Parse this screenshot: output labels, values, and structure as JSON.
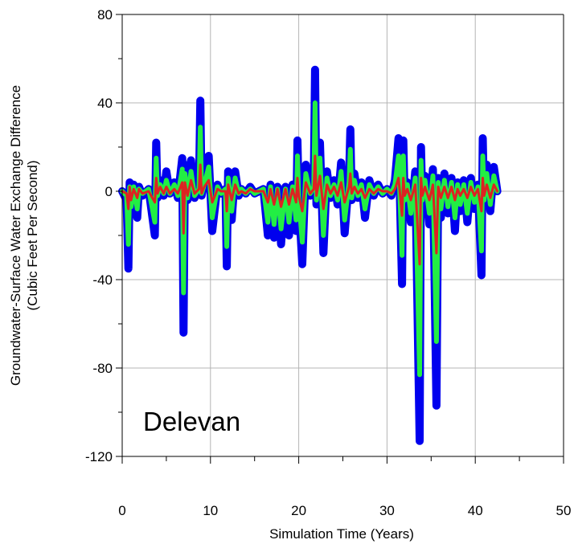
{
  "chart_data": {
    "type": "line",
    "title": "",
    "annotation": "Delevan",
    "xlabel": "Simulation Time (Years)",
    "ylabel_lines": [
      "Groundwater-Surface Water Exchange Difference",
      "(Cubic Feet Per Second)"
    ],
    "xlim": [
      0,
      50
    ],
    "ylim": [
      -120,
      80
    ],
    "x_ticks": [
      0,
      10,
      20,
      30,
      40,
      50
    ],
    "x_tick_labels": [
      "0",
      "10",
      "20",
      "30",
      "40",
      "50"
    ],
    "y_ticks": [
      -120,
      -80,
      -40,
      0,
      40,
      80
    ],
    "y_tick_labels": [
      "-120",
      "-80",
      "-40",
      "0",
      "40",
      "80"
    ],
    "grid": true,
    "colors": {
      "series_1": "#0000ee",
      "series_2": "#22ee44",
      "series_3": "#dd2222",
      "grid": "#b4b4b4",
      "frame": "#000000"
    },
    "series": [
      {
        "x": [
          0.0,
          0.5,
          0.7,
          0.85,
          1.0,
          1.3,
          1.7,
          1.9,
          2.3,
          3.0,
          3.7,
          3.85,
          4.0,
          4.3,
          4.7,
          5.0,
          5.4,
          5.9,
          6.3,
          6.8,
          6.95,
          7.1,
          7.4,
          7.8,
          8.2,
          8.7,
          8.85,
          9.0,
          9.3,
          9.8,
          10.2,
          10.8,
          11.2,
          11.7,
          11.85,
          12.0,
          12.4,
          12.8,
          13.2,
          13.5,
          14.0,
          14.5,
          15.0,
          15.5,
          16.0,
          16.5,
          16.8,
          17.2,
          17.6,
          18.0,
          18.5,
          18.9,
          19.3,
          19.7,
          19.85,
          20.0,
          20.4,
          20.8,
          21.3,
          21.7,
          21.85,
          22.0,
          22.4,
          22.8,
          23.2,
          23.6,
          24.0,
          24.4,
          24.8,
          25.2,
          25.7,
          25.85,
          26.0,
          26.3,
          26.7,
          27.1,
          27.5,
          28.0,
          28.5,
          29.0,
          29.5,
          30.0,
          30.5,
          30.9,
          31.3,
          31.7,
          31.85,
          32.0,
          32.3,
          32.7,
          33.2,
          33.7,
          33.85,
          34.0,
          34.3,
          34.8,
          35.2,
          35.6,
          35.8,
          36.1,
          36.5,
          36.9,
          37.3,
          37.7,
          38.0,
          38.3,
          38.7,
          39.1,
          39.5,
          39.9,
          40.3,
          40.7,
          40.85,
          41.0,
          41.3,
          41.7,
          42.1,
          42.5
        ],
        "y": [
          0,
          -4,
          -35,
          4,
          -10,
          3,
          -12,
          2,
          -2,
          1,
          -20,
          22,
          -3,
          5,
          -2,
          9,
          -1,
          4,
          -3,
          15,
          -64,
          12,
          -4,
          14,
          -3,
          2,
          41,
          -2,
          5,
          16,
          -18,
          3,
          -1,
          1,
          -34,
          9,
          -13,
          9,
          -2,
          1,
          -1,
          2,
          -1,
          0,
          1,
          -20,
          3,
          -21,
          2,
          -24,
          2,
          -20,
          3,
          -18,
          23,
          -4,
          -33,
          12,
          -2,
          3,
          55,
          -6,
          22,
          -28,
          9,
          -3,
          5,
          -6,
          13,
          -19,
          6,
          28,
          -4,
          8,
          -3,
          4,
          -12,
          5,
          -2,
          3,
          -1,
          1,
          -2,
          5,
          24,
          -42,
          23,
          -6,
          4,
          -14,
          9,
          -113,
          20,
          -6,
          7,
          -15,
          10,
          -97,
          6,
          -12,
          8,
          -10,
          6,
          -18,
          4,
          -9,
          5,
          -14,
          6,
          -8,
          3,
          -38,
          24,
          -6,
          12,
          -9,
          11,
          0
        ],
        "width": 10
      },
      {
        "x": [
          0.0,
          0.5,
          0.7,
          0.85,
          1.0,
          1.3,
          1.7,
          1.9,
          2.3,
          3.0,
          3.7,
          3.85,
          4.0,
          4.3,
          4.7,
          5.0,
          5.4,
          5.9,
          6.3,
          6.8,
          6.95,
          7.1,
          7.4,
          7.8,
          8.2,
          8.7,
          8.85,
          9.0,
          9.3,
          9.8,
          10.2,
          10.8,
          11.2,
          11.7,
          11.85,
          12.0,
          12.4,
          12.8,
          13.2,
          13.5,
          14.0,
          14.5,
          15.0,
          15.5,
          16.0,
          16.5,
          16.8,
          17.2,
          17.6,
          18.0,
          18.5,
          18.9,
          19.3,
          19.7,
          19.85,
          20.0,
          20.4,
          20.8,
          21.3,
          21.7,
          21.85,
          22.0,
          22.4,
          22.8,
          23.2,
          23.6,
          24.0,
          24.4,
          24.8,
          25.2,
          25.7,
          25.85,
          26.0,
          26.3,
          26.7,
          27.1,
          27.5,
          28.0,
          28.5,
          29.0,
          29.5,
          30.0,
          30.5,
          30.9,
          31.3,
          31.7,
          31.85,
          32.0,
          32.3,
          32.7,
          33.2,
          33.7,
          33.85,
          34.0,
          34.3,
          34.8,
          35.2,
          35.6,
          35.8,
          36.1,
          36.5,
          36.9,
          37.3,
          37.7,
          38.0,
          38.3,
          38.7,
          39.1,
          39.5,
          39.9,
          40.3,
          40.7,
          40.85,
          41.0,
          41.3,
          41.7,
          42.1,
          42.5
        ],
        "y": [
          0,
          -2,
          -24,
          2,
          -7,
          2,
          -8,
          1,
          -1,
          1,
          -14,
          15,
          -2,
          3,
          -1,
          5,
          -1,
          3,
          -2,
          10,
          -46,
          8,
          -3,
          9,
          -2,
          1,
          29,
          -1,
          3,
          11,
          -12,
          2,
          -1,
          1,
          -25,
          6,
          -9,
          6,
          -1,
          1,
          -1,
          1,
          -1,
          0,
          1,
          -14,
          2,
          -15,
          1,
          -17,
          1,
          -14,
          2,
          -13,
          16,
          -3,
          -23,
          8,
          -1,
          2,
          40,
          -4,
          15,
          -20,
          6,
          -2,
          3,
          -4,
          9,
          -13,
          4,
          19,
          -3,
          5,
          -2,
          3,
          -8,
          3,
          -1,
          2,
          -1,
          1,
          -1,
          3,
          16,
          -29,
          16,
          -4,
          3,
          -10,
          6,
          -83,
          14,
          -4,
          5,
          -10,
          7,
          -68,
          4,
          -8,
          5,
          -7,
          4,
          -12,
          3,
          -6,
          3,
          -10,
          4,
          -5,
          2,
          -27,
          16,
          -4,
          8,
          -6,
          7,
          0
        ],
        "width": 6
      },
      {
        "x": [
          0.0,
          0.5,
          0.7,
          0.85,
          1.0,
          1.3,
          1.7,
          1.9,
          2.3,
          3.0,
          3.7,
          3.85,
          4.0,
          4.3,
          4.7,
          5.0,
          5.4,
          5.9,
          6.3,
          6.8,
          6.95,
          7.1,
          7.4,
          7.8,
          8.2,
          8.7,
          8.85,
          9.0,
          9.3,
          9.8,
          10.2,
          10.8,
          11.2,
          11.7,
          11.85,
          12.0,
          12.4,
          12.8,
          13.2,
          13.5,
          14.0,
          14.5,
          15.0,
          15.5,
          16.0,
          16.5,
          16.8,
          17.2,
          17.6,
          18.0,
          18.5,
          18.9,
          19.3,
          19.7,
          19.85,
          20.0,
          20.4,
          20.8,
          21.3,
          21.7,
          21.85,
          22.0,
          22.4,
          22.8,
          23.2,
          23.6,
          24.0,
          24.4,
          24.8,
          25.2,
          25.7,
          25.85,
          26.0,
          26.3,
          26.7,
          27.1,
          27.5,
          28.0,
          28.5,
          29.0,
          29.5,
          30.0,
          30.5,
          30.9,
          31.3,
          31.7,
          31.85,
          32.0,
          32.3,
          32.7,
          33.2,
          33.7,
          33.85,
          34.0,
          34.3,
          34.8,
          35.2,
          35.6,
          35.8,
          36.1,
          36.5,
          36.9,
          37.3,
          37.7,
          38.0,
          38.3,
          38.7,
          39.1,
          39.5,
          39.9,
          40.3,
          40.7,
          40.85,
          41.0,
          41.3,
          41.7,
          42.1,
          42.5
        ],
        "y": [
          0,
          -1,
          -8,
          2,
          -4,
          1,
          -3,
          1,
          -1,
          0,
          -5,
          6,
          -1,
          2,
          -1,
          2,
          -1,
          1,
          -1,
          4,
          -19,
          4,
          -2,
          5,
          -1,
          1,
          12,
          -1,
          2,
          5,
          -5,
          1,
          0,
          0,
          -9,
          3,
          -4,
          3,
          -1,
          0,
          -1,
          1,
          0,
          0,
          0,
          -5,
          1,
          -6,
          1,
          -7,
          1,
          -6,
          1,
          -5,
          6,
          -2,
          -9,
          4,
          -1,
          1,
          16,
          -2,
          7,
          -8,
          3,
          -1,
          2,
          -2,
          4,
          -5,
          2,
          8,
          -1,
          2,
          -1,
          1,
          -3,
          1,
          -1,
          1,
          0,
          0,
          -1,
          1,
          6,
          -11,
          6,
          -2,
          1,
          -4,
          3,
          -33,
          6,
          -2,
          2,
          -4,
          3,
          -28,
          2,
          -3,
          2,
          -3,
          2,
          -4,
          1,
          -2,
          1,
          -3,
          2,
          -2,
          1,
          -9,
          6,
          -2,
          3,
          -3,
          3,
          0
        ],
        "width": 3
      }
    ]
  }
}
